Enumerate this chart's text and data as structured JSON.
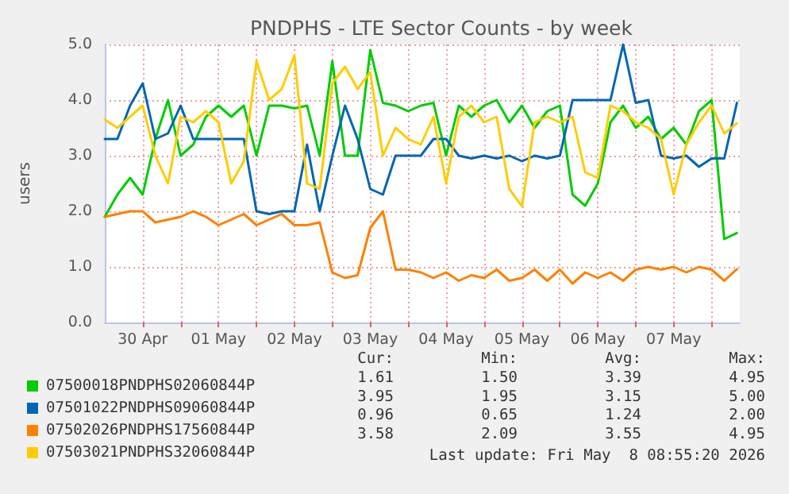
{
  "chart_data": {
    "type": "line",
    "title": "PNDPHS - LTE Sector Counts - by week",
    "ylabel": "users",
    "x": [
      "2026-04-30T00:00",
      "2026-04-30T04:00",
      "2026-04-30T08:00",
      "2026-04-30T12:00",
      "2026-04-30T16:00",
      "2026-04-30T20:00",
      "2026-05-01T00:00",
      "2026-05-01T04:00",
      "2026-05-01T08:00",
      "2026-05-01T12:00",
      "2026-05-01T16:00",
      "2026-05-01T20:00",
      "2026-05-02T00:00",
      "2026-05-02T04:00",
      "2026-05-02T08:00",
      "2026-05-02T12:00",
      "2026-05-02T16:00",
      "2026-05-02T20:00",
      "2026-05-03T00:00",
      "2026-05-03T04:00",
      "2026-05-03T08:00",
      "2026-05-03T12:00",
      "2026-05-03T16:00",
      "2026-05-03T20:00",
      "2026-05-04T00:00",
      "2026-05-04T04:00",
      "2026-05-04T08:00",
      "2026-05-04T12:00",
      "2026-05-04T16:00",
      "2026-05-04T20:00",
      "2026-05-05T00:00",
      "2026-05-05T04:00",
      "2026-05-05T08:00",
      "2026-05-05T12:00",
      "2026-05-05T16:00",
      "2026-05-05T20:00",
      "2026-05-06T00:00",
      "2026-05-06T04:00",
      "2026-05-06T08:00",
      "2026-05-06T12:00",
      "2026-05-06T16:00",
      "2026-05-06T20:00",
      "2026-05-07T00:00",
      "2026-05-07T04:00",
      "2026-05-07T08:00",
      "2026-05-07T12:00",
      "2026-05-07T16:00",
      "2026-05-07T20:00",
      "2026-05-08T00:00",
      "2026-05-08T04:00",
      "2026-05-08T08:00"
    ],
    "series": [
      {
        "name": "07500018PNDPHS02060844P",
        "color": "#00cc00",
        "values": [
          1.9,
          2.3,
          2.6,
          2.3,
          3.3,
          4.0,
          3.0,
          3.2,
          3.7,
          3.9,
          3.7,
          3.9,
          3.0,
          3.9,
          3.9,
          3.85,
          3.9,
          3.0,
          4.7,
          3.0,
          3.0,
          4.9,
          3.95,
          3.9,
          3.8,
          3.9,
          3.95,
          3.0,
          3.9,
          3.7,
          3.9,
          4.0,
          3.6,
          3.9,
          3.5,
          3.8,
          3.9,
          2.3,
          2.1,
          2.5,
          3.6,
          3.9,
          3.5,
          3.7,
          3.3,
          3.5,
          3.2,
          3.8,
          4.0,
          1.5,
          1.61
        ]
      },
      {
        "name": "07501022PNDPHS09060844P",
        "color": "#0066b3",
        "values": [
          3.3,
          3.3,
          3.9,
          4.3,
          3.3,
          3.4,
          3.9,
          3.3,
          3.3,
          3.3,
          3.3,
          3.3,
          2.0,
          1.95,
          2.0,
          2.0,
          3.2,
          2.0,
          3.0,
          3.9,
          3.3,
          2.4,
          2.3,
          3.0,
          3.0,
          3.0,
          3.3,
          3.3,
          3.0,
          2.95,
          3.0,
          2.95,
          3.0,
          2.9,
          3.0,
          2.95,
          3.0,
          4.0,
          4.0,
          4.0,
          4.0,
          5.0,
          3.95,
          4.0,
          3.0,
          2.95,
          3.0,
          2.8,
          2.95,
          2.95,
          3.95
        ]
      },
      {
        "name": "07502026PNDPHS17560844P",
        "color": "#ff8000",
        "values": [
          1.9,
          1.95,
          2.0,
          2.0,
          1.8,
          1.85,
          1.9,
          2.0,
          1.9,
          1.75,
          1.85,
          1.95,
          1.75,
          1.85,
          1.95,
          1.75,
          1.75,
          1.8,
          0.9,
          0.8,
          0.85,
          1.7,
          2.0,
          0.95,
          0.95,
          0.9,
          0.8,
          0.9,
          0.75,
          0.85,
          0.8,
          0.95,
          0.75,
          0.8,
          0.95,
          0.75,
          0.95,
          0.7,
          0.9,
          0.8,
          0.9,
          0.75,
          0.95,
          1.0,
          0.95,
          1.0,
          0.9,
          1.0,
          0.95,
          0.75,
          0.96
        ]
      },
      {
        "name": "07503021PNDPHS32060844P",
        "color": "#ffcc00",
        "values": [
          3.65,
          3.5,
          3.7,
          3.9,
          3.0,
          2.5,
          3.7,
          3.6,
          3.8,
          3.6,
          2.5,
          2.9,
          4.7,
          4.0,
          4.2,
          4.8,
          2.5,
          2.4,
          4.3,
          4.6,
          4.2,
          4.5,
          3.0,
          3.5,
          3.3,
          3.2,
          3.7,
          2.5,
          3.7,
          3.9,
          3.6,
          3.7,
          2.4,
          2.09,
          3.6,
          3.7,
          3.6,
          3.7,
          2.7,
          2.6,
          3.9,
          3.8,
          3.6,
          3.5,
          3.3,
          2.3,
          3.2,
          3.6,
          3.9,
          3.4,
          3.58
        ]
      }
    ],
    "xlim": [
      "2026-04-30T00:00",
      "2026-05-08T08:55"
    ],
    "xticks": [
      {
        "value": "2026-04-30T12:00",
        "label": "30 Apr"
      },
      {
        "value": "2026-05-01T00:00",
        "label": null
      },
      {
        "value": "2026-05-01T12:00",
        "label": "01 May"
      },
      {
        "value": "2026-05-02T00:00",
        "label": null
      },
      {
        "value": "2026-05-02T12:00",
        "label": "02 May"
      },
      {
        "value": "2026-05-03T00:00",
        "label": null
      },
      {
        "value": "2026-05-03T12:00",
        "label": "03 May"
      },
      {
        "value": "2026-05-04T00:00",
        "label": null
      },
      {
        "value": "2026-05-04T12:00",
        "label": "04 May"
      },
      {
        "value": "2026-05-05T00:00",
        "label": null
      },
      {
        "value": "2026-05-05T12:00",
        "label": "05 May"
      },
      {
        "value": "2026-05-06T00:00",
        "label": null
      },
      {
        "value": "2026-05-06T12:00",
        "label": "06 May"
      },
      {
        "value": "2026-05-07T00:00",
        "label": null
      },
      {
        "value": "2026-05-07T12:00",
        "label": "07 May"
      },
      {
        "value": "2026-05-08T00:00",
        "label": null
      }
    ],
    "ylim": [
      0,
      5
    ],
    "yticks": [
      {
        "value": 0,
        "label": "0.0"
      },
      {
        "value": 1,
        "label": "1.0"
      },
      {
        "value": 2,
        "label": "2.0"
      },
      {
        "value": 3,
        "label": "3.0"
      },
      {
        "value": 4,
        "label": "4.0"
      },
      {
        "value": 5,
        "label": "5.0"
      }
    ],
    "grid": true,
    "legend": "bottom left",
    "marker": "none",
    "line_style": "solid",
    "annotations": [
      "Cur:",
      "Min:",
      "Avg:",
      "Max:",
      "1.61",
      "1.50",
      "3.39",
      "4.95",
      "3.95",
      "1.95",
      "3.15",
      "5.00",
      "0.96",
      "0.65",
      "1.24",
      "2.00",
      "3.58",
      "2.09",
      "3.55",
      "4.95",
      "Last update: Fri May  8 08:55:20 2026"
    ]
  }
}
